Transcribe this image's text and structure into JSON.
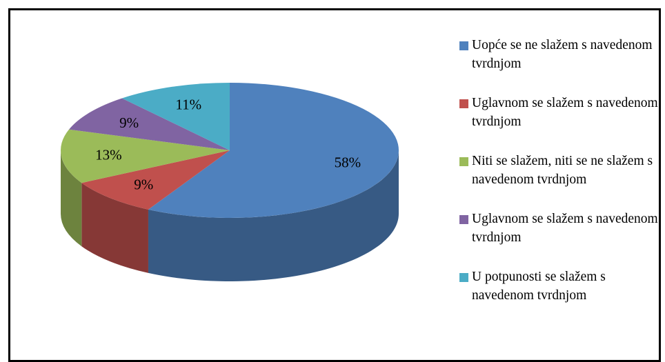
{
  "chart_data": {
    "type": "pie",
    "categories": [
      "Uopće se ne slažem s navedenom tvrdnjom",
      "Uglavnom se slažem s navedenom tvrdnjom",
      "Niti se slažem, niti se ne slažem s navedenom tvrdnjom",
      "Uglavnom se slažem s navedenom tvrdnjom",
      "U potpunosti se slažem s navedenom tvrdnjom"
    ],
    "values": [
      58,
      9,
      13,
      9,
      11
    ],
    "value_labels": [
      "58%",
      "9%",
      "13%",
      "9%",
      "11%"
    ],
    "colors": [
      "#4f81bd",
      "#c0504d",
      "#9bbb59",
      "#8064a2",
      "#4bacc6"
    ],
    "legend": "right"
  }
}
